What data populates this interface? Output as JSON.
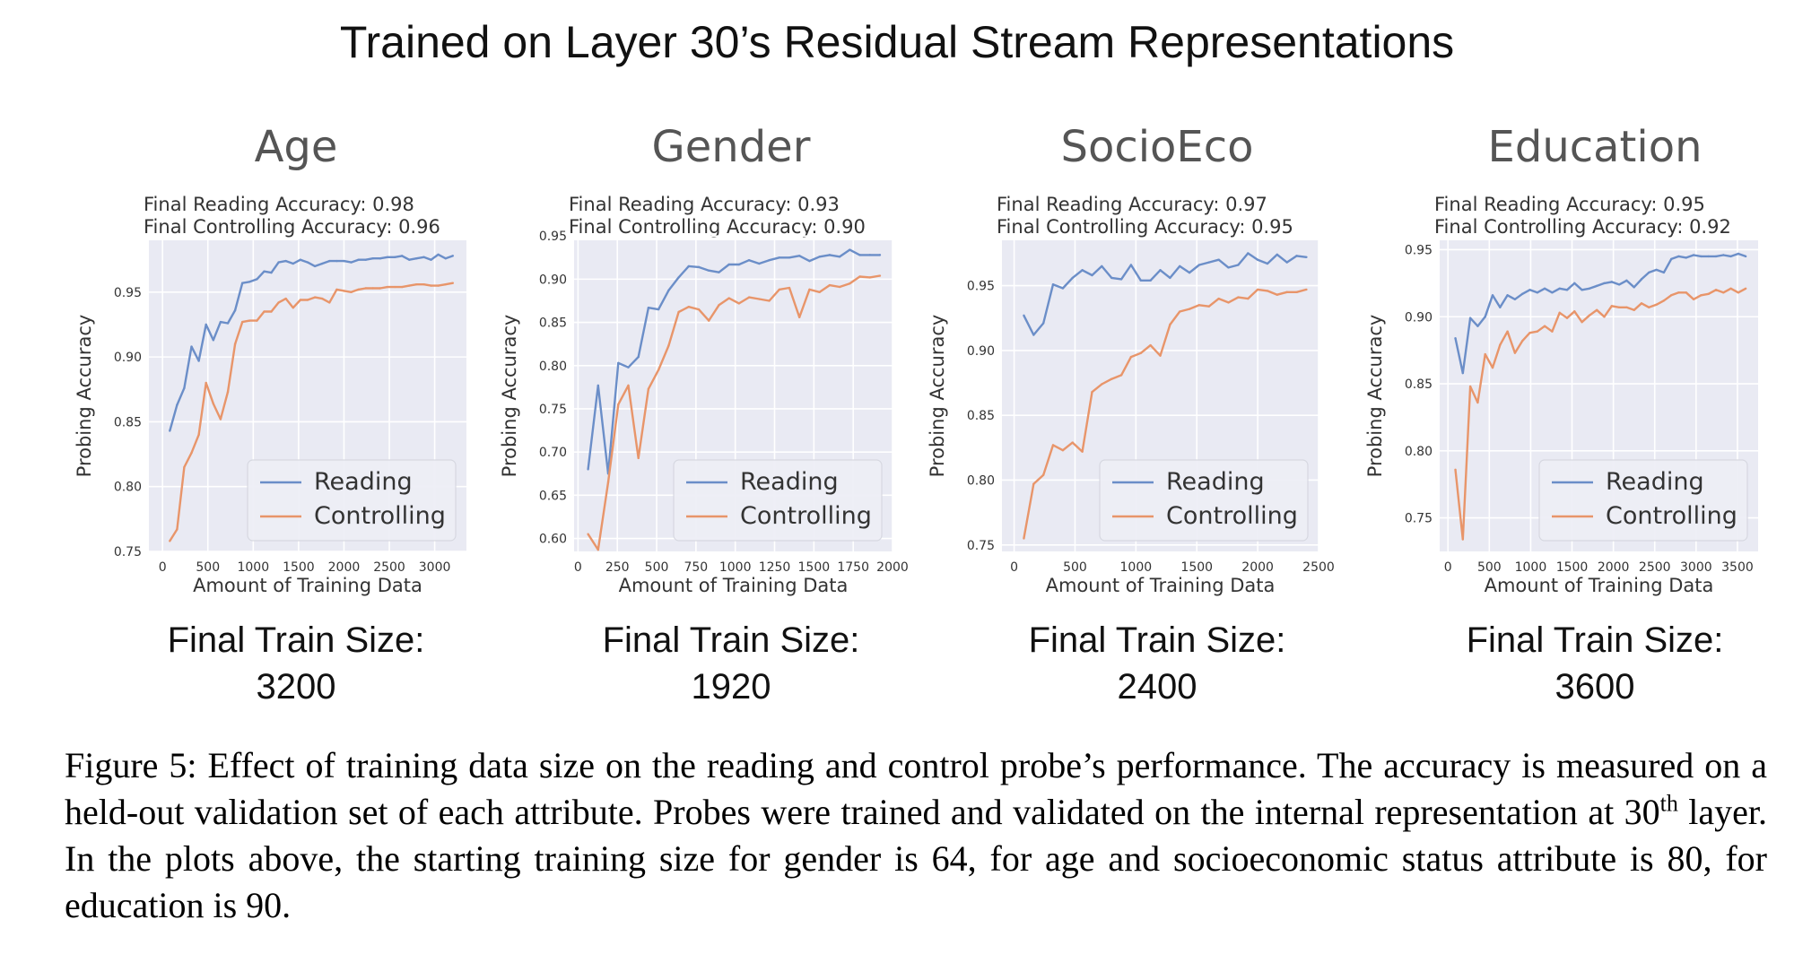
{
  "title": "Trained on Layer 30’s Residual Stream Representations",
  "colors": {
    "reading": "#6b8ec8",
    "controlling": "#e8956a",
    "plot_bg": "#e9eaf3",
    "grid": "#ffffff"
  },
  "train_size_label": "Final Train Size:",
  "chart_data": [
    {
      "type": "line",
      "title": "Age",
      "subtitle_reading": "Final Reading Accuracy: 0.98",
      "subtitle_controlling": "Final Controlling Accuracy: 0.96",
      "xlabel": "Amount of Training Data",
      "ylabel": "Probing Accuracy",
      "xlim": [
        -150,
        3350
      ],
      "ylim": [
        0.75,
        0.99
      ],
      "xticks": [
        0,
        500,
        1000,
        1500,
        2000,
        2500,
        3000
      ],
      "yticks": [
        0.75,
        0.8,
        0.85,
        0.9,
        0.95
      ],
      "legend_position": "lower-right",
      "final_train_size": "3200",
      "series": [
        {
          "name": "Reading",
          "x": [
            80,
            160,
            240,
            320,
            400,
            480,
            560,
            640,
            720,
            800,
            880,
            960,
            1040,
            1120,
            1200,
            1280,
            1360,
            1440,
            1520,
            1600,
            1680,
            1760,
            1840,
            1920,
            2000,
            2080,
            2160,
            2240,
            2320,
            2400,
            2480,
            2560,
            2640,
            2720,
            2800,
            2880,
            2960,
            3040,
            3120,
            3200
          ],
          "y": [
            0.843,
            0.863,
            0.876,
            0.908,
            0.897,
            0.925,
            0.913,
            0.927,
            0.926,
            0.936,
            0.957,
            0.958,
            0.96,
            0.966,
            0.965,
            0.973,
            0.974,
            0.972,
            0.975,
            0.973,
            0.97,
            0.972,
            0.974,
            0.974,
            0.974,
            0.973,
            0.975,
            0.975,
            0.976,
            0.976,
            0.977,
            0.977,
            0.978,
            0.975,
            0.976,
            0.977,
            0.975,
            0.979,
            0.976,
            0.978
          ]
        },
        {
          "name": "Controlling",
          "x": [
            80,
            160,
            240,
            320,
            400,
            480,
            560,
            640,
            720,
            800,
            880,
            960,
            1040,
            1120,
            1200,
            1280,
            1360,
            1440,
            1520,
            1600,
            1680,
            1760,
            1840,
            1920,
            2000,
            2080,
            2160,
            2240,
            2320,
            2400,
            2480,
            2560,
            2640,
            2720,
            2800,
            2880,
            2960,
            3040,
            3120,
            3200
          ],
          "y": [
            0.758,
            0.767,
            0.815,
            0.826,
            0.84,
            0.88,
            0.864,
            0.852,
            0.873,
            0.91,
            0.927,
            0.928,
            0.928,
            0.935,
            0.935,
            0.942,
            0.945,
            0.938,
            0.944,
            0.944,
            0.946,
            0.945,
            0.942,
            0.952,
            0.951,
            0.95,
            0.952,
            0.953,
            0.953,
            0.953,
            0.954,
            0.954,
            0.954,
            0.955,
            0.956,
            0.956,
            0.955,
            0.955,
            0.956,
            0.957
          ]
        }
      ]
    },
    {
      "type": "line",
      "title": "Gender",
      "subtitle_reading": "Final Reading Accuracy: 0.93",
      "subtitle_controlling": "Final Controlling Accuracy: 0.90",
      "xlabel": "Amount of Training Data",
      "ylabel": "Probing Accuracy",
      "xlim": [
        -25,
        2000
      ],
      "ylim": [
        0.585,
        0.945
      ],
      "xticks": [
        0,
        250,
        500,
        750,
        1000,
        1250,
        1500,
        1750,
        2000
      ],
      "yticks": [
        0.6,
        0.65,
        0.7,
        0.75,
        0.8,
        0.85,
        0.9,
        0.95
      ],
      "legend_position": "lower-right",
      "final_train_size": "1920",
      "series": [
        {
          "name": "Reading",
          "x": [
            64,
            128,
            192,
            256,
            320,
            384,
            448,
            512,
            576,
            640,
            704,
            768,
            832,
            896,
            960,
            1024,
            1088,
            1152,
            1216,
            1280,
            1344,
            1408,
            1472,
            1536,
            1600,
            1664,
            1728,
            1792,
            1856,
            1920
          ],
          "y": [
            0.68,
            0.777,
            0.675,
            0.803,
            0.798,
            0.81,
            0.867,
            0.865,
            0.887,
            0.902,
            0.915,
            0.914,
            0.91,
            0.908,
            0.917,
            0.917,
            0.922,
            0.918,
            0.922,
            0.925,
            0.925,
            0.927,
            0.921,
            0.926,
            0.928,
            0.926,
            0.934,
            0.928,
            0.928,
            0.928
          ]
        },
        {
          "name": "Controlling",
          "x": [
            64,
            128,
            192,
            256,
            320,
            384,
            448,
            512,
            576,
            640,
            704,
            768,
            832,
            896,
            960,
            1024,
            1088,
            1152,
            1216,
            1280,
            1344,
            1408,
            1472,
            1536,
            1600,
            1664,
            1728,
            1792,
            1856,
            1920
          ],
          "y": [
            0.605,
            0.587,
            0.665,
            0.755,
            0.777,
            0.693,
            0.773,
            0.795,
            0.823,
            0.862,
            0.868,
            0.865,
            0.852,
            0.87,
            0.878,
            0.872,
            0.879,
            0.877,
            0.875,
            0.888,
            0.89,
            0.856,
            0.888,
            0.885,
            0.893,
            0.891,
            0.895,
            0.903,
            0.902,
            0.904
          ]
        }
      ]
    },
    {
      "type": "line",
      "title": "SocioEco",
      "subtitle_reading": "Final Reading Accuracy: 0.97",
      "subtitle_controlling": "Final Controlling Accuracy: 0.95",
      "xlabel": "Amount of Training Data",
      "ylabel": "Probing Accuracy",
      "xlim": [
        -100,
        2500
      ],
      "ylim": [
        0.745,
        0.985
      ],
      "xticks": [
        0,
        500,
        1000,
        1500,
        2000,
        2500
      ],
      "yticks": [
        0.75,
        0.8,
        0.85,
        0.9,
        0.95
      ],
      "legend_position": "lower-right",
      "final_train_size": "2400",
      "series": [
        {
          "name": "Reading",
          "x": [
            80,
            160,
            240,
            320,
            400,
            480,
            560,
            640,
            720,
            800,
            880,
            960,
            1040,
            1120,
            1200,
            1280,
            1360,
            1440,
            1520,
            1600,
            1680,
            1760,
            1840,
            1920,
            2000,
            2080,
            2160,
            2240,
            2320,
            2400
          ],
          "y": [
            0.927,
            0.912,
            0.921,
            0.951,
            0.948,
            0.956,
            0.962,
            0.958,
            0.965,
            0.956,
            0.955,
            0.966,
            0.954,
            0.954,
            0.962,
            0.956,
            0.965,
            0.96,
            0.966,
            0.968,
            0.97,
            0.964,
            0.966,
            0.975,
            0.97,
            0.967,
            0.974,
            0.968,
            0.973,
            0.972
          ]
        },
        {
          "name": "Controlling",
          "x": [
            80,
            160,
            240,
            320,
            400,
            480,
            560,
            640,
            720,
            800,
            880,
            960,
            1040,
            1120,
            1200,
            1280,
            1360,
            1440,
            1520,
            1600,
            1680,
            1760,
            1840,
            1920,
            2000,
            2080,
            2160,
            2240,
            2320,
            2400
          ],
          "y": [
            0.755,
            0.797,
            0.804,
            0.827,
            0.823,
            0.829,
            0.822,
            0.868,
            0.874,
            0.878,
            0.881,
            0.895,
            0.898,
            0.904,
            0.896,
            0.92,
            0.93,
            0.932,
            0.935,
            0.934,
            0.94,
            0.937,
            0.941,
            0.94,
            0.947,
            0.946,
            0.943,
            0.945,
            0.945,
            0.947
          ]
        }
      ]
    },
    {
      "type": "line",
      "title": "Education",
      "subtitle_reading": "Final Reading Accuracy: 0.95",
      "subtitle_controlling": "Final Controlling Accuracy: 0.92",
      "xlabel": "Amount of Training Data",
      "ylabel": "Probing Accuracy",
      "xlim": [
        -100,
        3750
      ],
      "ylim": [
        0.725,
        0.957
      ],
      "xticks": [
        0,
        500,
        1000,
        1500,
        2000,
        2500,
        3000,
        3500
      ],
      "yticks": [
        0.75,
        0.8,
        0.85,
        0.9,
        0.95
      ],
      "legend_position": "lower-right",
      "final_train_size": "3600",
      "series": [
        {
          "name": "Reading",
          "x": [
            90,
            180,
            270,
            360,
            450,
            540,
            630,
            720,
            810,
            900,
            990,
            1080,
            1170,
            1260,
            1350,
            1440,
            1530,
            1620,
            1710,
            1800,
            1890,
            1980,
            2070,
            2160,
            2250,
            2340,
            2430,
            2520,
            2610,
            2700,
            2790,
            2880,
            2970,
            3060,
            3150,
            3240,
            3330,
            3420,
            3510,
            3600
          ],
          "y": [
            0.884,
            0.858,
            0.899,
            0.893,
            0.9,
            0.916,
            0.907,
            0.916,
            0.913,
            0.917,
            0.92,
            0.918,
            0.921,
            0.918,
            0.921,
            0.92,
            0.925,
            0.92,
            0.921,
            0.923,
            0.925,
            0.926,
            0.924,
            0.927,
            0.922,
            0.928,
            0.933,
            0.935,
            0.933,
            0.943,
            0.945,
            0.944,
            0.946,
            0.945,
            0.945,
            0.945,
            0.946,
            0.945,
            0.947,
            0.945
          ]
        },
        {
          "name": "Controlling",
          "x": [
            90,
            180,
            270,
            360,
            450,
            540,
            630,
            720,
            810,
            900,
            990,
            1080,
            1170,
            1260,
            1350,
            1440,
            1530,
            1620,
            1710,
            1800,
            1890,
            1980,
            2070,
            2160,
            2250,
            2340,
            2430,
            2520,
            2610,
            2700,
            2790,
            2880,
            2970,
            3060,
            3150,
            3240,
            3330,
            3420,
            3510,
            3600
          ],
          "y": [
            0.786,
            0.734,
            0.848,
            0.836,
            0.872,
            0.862,
            0.879,
            0.889,
            0.873,
            0.882,
            0.888,
            0.889,
            0.893,
            0.889,
            0.903,
            0.899,
            0.904,
            0.896,
            0.901,
            0.905,
            0.9,
            0.908,
            0.907,
            0.907,
            0.905,
            0.91,
            0.907,
            0.909,
            0.912,
            0.916,
            0.918,
            0.918,
            0.913,
            0.916,
            0.917,
            0.92,
            0.918,
            0.921,
            0.918,
            0.921
          ]
        }
      ]
    }
  ],
  "caption": {
    "part1": "Figure 5: Effect of training data size on the reading and control probe’s performance. The accuracy is measured on a held-out validation set of each attribute. Probes were trained and validated on the internal representation at 30",
    "sup": "th",
    "part2": " layer. In the plots above, the starting training size for gender is 64, for age and socioeconomic status attribute is 80, for education is 90."
  }
}
